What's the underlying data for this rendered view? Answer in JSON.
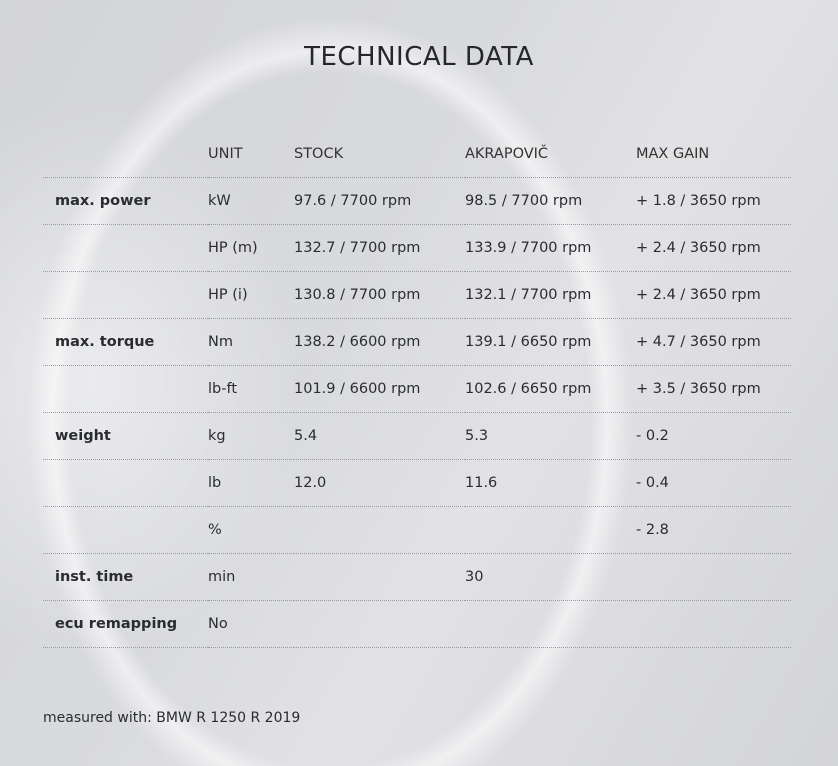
{
  "title": "TECHNICAL DATA",
  "columns": [
    "",
    "UNIT",
    "STOCK",
    "AKRAPOVIČ",
    "MAX GAIN"
  ],
  "rows": [
    [
      "max. power",
      "kW",
      "97.6 / 7700 rpm",
      "98.5 / 7700 rpm",
      "+ 1.8 / 3650 rpm"
    ],
    [
      "",
      "HP (m)",
      "132.7 / 7700 rpm",
      "133.9 / 7700 rpm",
      "+ 2.4 / 3650 rpm"
    ],
    [
      "",
      "HP (i)",
      "130.8 / 7700 rpm",
      "132.1 / 7700 rpm",
      "+ 2.4 / 3650 rpm"
    ],
    [
      "max. torque",
      "Nm",
      "138.2 / 6600 rpm",
      "139.1 / 6650 rpm",
      "+ 4.7 / 3650 rpm"
    ],
    [
      "",
      "lb-ft",
      "101.9 / 6600 rpm",
      "102.6 / 6650 rpm",
      "+ 3.5 / 3650 rpm"
    ],
    [
      "weight",
      "kg",
      "5.4",
      "5.3",
      "- 0.2"
    ],
    [
      "",
      "lb",
      "12.0",
      "11.6",
      "- 0.4"
    ],
    [
      "",
      "%",
      "",
      "",
      "- 2.8"
    ],
    [
      "inst. time",
      "min",
      "",
      "30",
      ""
    ],
    [
      "ecu remapping",
      "No",
      "",
      "",
      ""
    ]
  ],
  "footer": "measured with: BMW R 1250 R 2019"
}
